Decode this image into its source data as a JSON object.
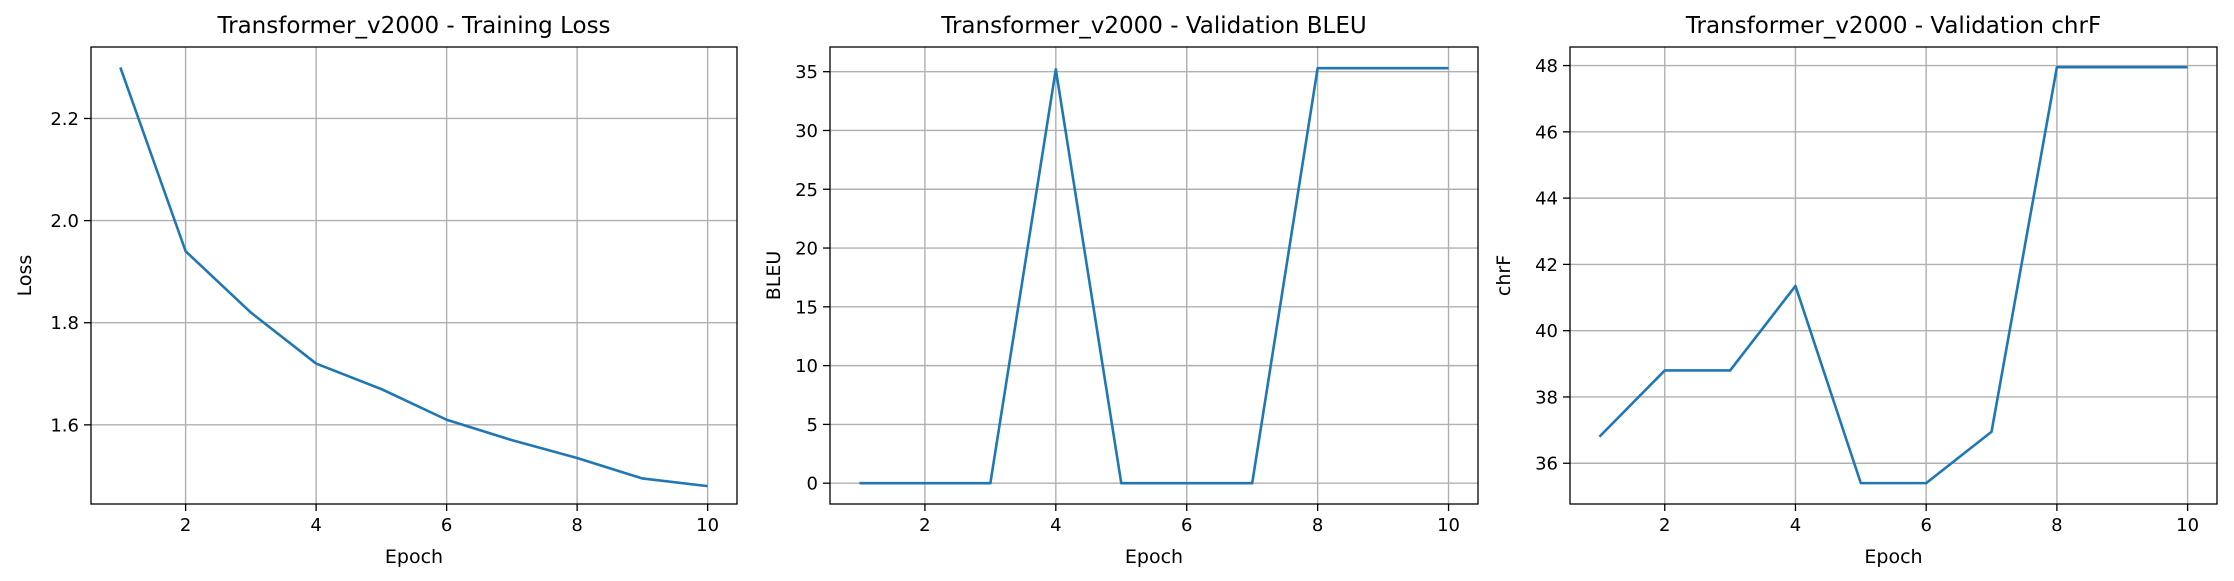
{
  "chart_data": [
    {
      "type": "line",
      "title": "Transformer_v2000 - Training Loss",
      "xlabel": "Epoch",
      "ylabel": "Loss",
      "xlim": [
        0.55,
        10.45
      ],
      "ylim": [
        1.445,
        2.34
      ],
      "xticks": [
        2,
        4,
        6,
        8,
        10
      ],
      "yticks": [
        1.6,
        1.8,
        2.0,
        2.2
      ],
      "ytick_labels": [
        "1.6",
        "1.8",
        "2.0",
        "2.2"
      ],
      "grid": true,
      "color": "#1f77b4",
      "x": [
        1,
        2,
        3,
        4,
        5,
        6,
        7,
        8,
        9,
        10
      ],
      "y": [
        2.3,
        1.94,
        1.82,
        1.72,
        1.67,
        1.61,
        1.57,
        1.535,
        1.495,
        1.48
      ]
    },
    {
      "type": "line",
      "title": "Transformer_v2000 - Validation BLEU",
      "xlabel": "Epoch",
      "ylabel": "BLEU",
      "xlim": [
        0.55,
        10.45
      ],
      "ylim": [
        -1.77,
        37.1
      ],
      "xticks": [
        2,
        4,
        6,
        8,
        10
      ],
      "yticks": [
        0,
        5,
        10,
        15,
        20,
        25,
        30,
        35
      ],
      "ytick_labels": [
        "0",
        "5",
        "10",
        "15",
        "20",
        "25",
        "30",
        "35"
      ],
      "grid": true,
      "color": "#1f77b4",
      "x": [
        1,
        2,
        3,
        4,
        5,
        6,
        7,
        8,
        9,
        10
      ],
      "y": [
        0,
        0,
        0,
        35.2,
        0,
        0,
        0,
        35.3,
        35.3,
        35.3
      ]
    },
    {
      "type": "line",
      "title": "Transformer_v2000 - Validation chrF",
      "xlabel": "Epoch",
      "ylabel": "chrF",
      "xlim": [
        0.55,
        10.45
      ],
      "ylim": [
        34.77,
        48.56
      ],
      "xticks": [
        2,
        4,
        6,
        8,
        10
      ],
      "yticks": [
        36,
        38,
        40,
        42,
        44,
        46,
        48
      ],
      "ytick_labels": [
        "36",
        "38",
        "40",
        "42",
        "44",
        "46",
        "48"
      ],
      "grid": true,
      "color": "#1f77b4",
      "x": [
        1,
        2,
        3,
        4,
        5,
        6,
        7,
        8,
        9,
        10
      ],
      "y": [
        36.8,
        38.8,
        38.8,
        41.35,
        35.4,
        35.4,
        36.95,
        47.95,
        47.95,
        47.95
      ]
    }
  ]
}
